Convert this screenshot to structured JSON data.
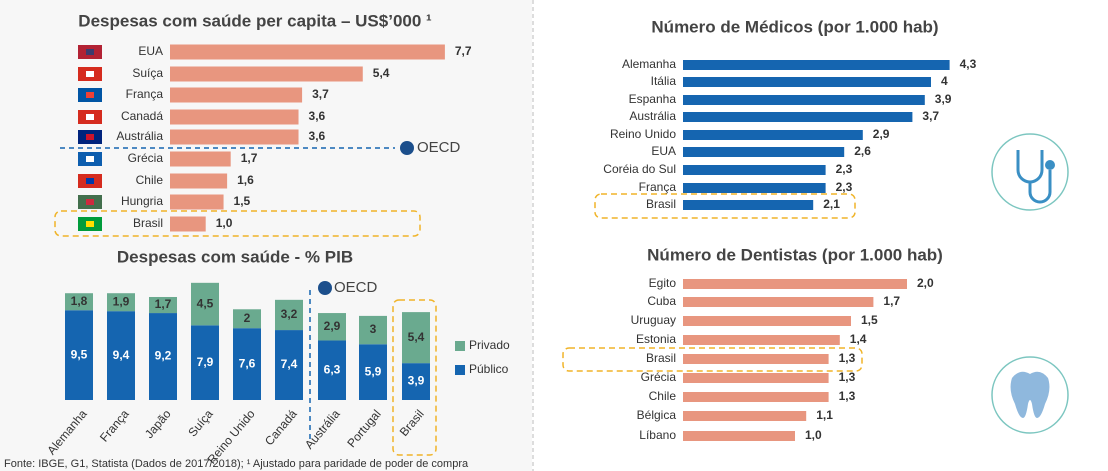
{
  "chart_data": [
    {
      "type": "barh",
      "title": "Despesas com saúde per capita – US$’000 ¹",
      "annotation": "OECD",
      "color": "#e8967f",
      "categories": [
        "EUA",
        "Suíça",
        "França",
        "Canadá",
        "Austrália",
        "Grécia",
        "Chile",
        "Hungria",
        "Brasil"
      ],
      "values": [
        7.7,
        5.4,
        3.7,
        3.6,
        3.6,
        1.7,
        1.6,
        1.5,
        1.0
      ],
      "value_labels": [
        "7,7",
        "5,4",
        "3,7",
        "3,6",
        "3,6",
        "1,7",
        "1,6",
        "1,5",
        "1,0"
      ]
    },
    {
      "type": "stacked_bar",
      "title": "Despesas com saúde - % PIB",
      "annotation": "OECD",
      "categories": [
        "Alemanha",
        "França",
        "Japão",
        "Suíça",
        "Reino Unido",
        "Canadá",
        "Austrália",
        "Portugal",
        "Brasil"
      ],
      "series": [
        {
          "name": "Público",
          "color": "#1565b0",
          "values": [
            9.5,
            9.4,
            9.2,
            7.9,
            7.6,
            7.4,
            6.3,
            5.9,
            3.9
          ],
          "value_labels": [
            "9,5",
            "9,4",
            "9,2",
            "7,9",
            "7,6",
            "7,4",
            "6,3",
            "5,9",
            "3,9"
          ]
        },
        {
          "name": "Privado",
          "color": "#6aaa8f",
          "values": [
            1.8,
            1.9,
            1.7,
            4.5,
            2,
            3.2,
            2.9,
            3,
            5.4
          ],
          "value_labels": [
            "1,8",
            "1,9",
            "1,7",
            "4,5",
            "2",
            "3,2",
            "2,9",
            "3",
            "5,4"
          ]
        }
      ]
    },
    {
      "type": "barh",
      "title": "Número de Médicos (por 1.000 hab)",
      "color": "#1565b0",
      "categories": [
        "Alemanha",
        "Itália",
        "Espanha",
        "Austrália",
        "Reino Unido",
        "EUA",
        "Coréia do Sul",
        "França",
        "Brasil"
      ],
      "values": [
        4.3,
        4,
        3.9,
        3.7,
        2.9,
        2.6,
        2.3,
        2.3,
        2.1
      ],
      "value_labels": [
        "4,3",
        "4",
        "3,9",
        "3,7",
        "2,9",
        "2,6",
        "2,3",
        "2,3",
        "2,1"
      ]
    },
    {
      "type": "barh",
      "title": "Número de Dentistas (por 1.000 hab)",
      "color": "#e8967f",
      "categories": [
        "Egito",
        "Cuba",
        "Uruguay",
        "Estonia",
        "Brasil",
        "Grécia",
        "Chile",
        "Bélgica",
        "Líbano"
      ],
      "values": [
        2.0,
        1.7,
        1.5,
        1.4,
        1.3,
        1.3,
        1.3,
        1.1,
        1.0
      ],
      "value_labels": [
        "2,0",
        "1,7",
        "1,5",
        "1,4",
        "1,3",
        "1,3",
        "1,3",
        "1,1",
        "1,0"
      ]
    }
  ],
  "source": "Fonte: IBGE, G1, Statista (Dados de 2017/2018); ¹ Ajustado para paridade de poder de compra"
}
